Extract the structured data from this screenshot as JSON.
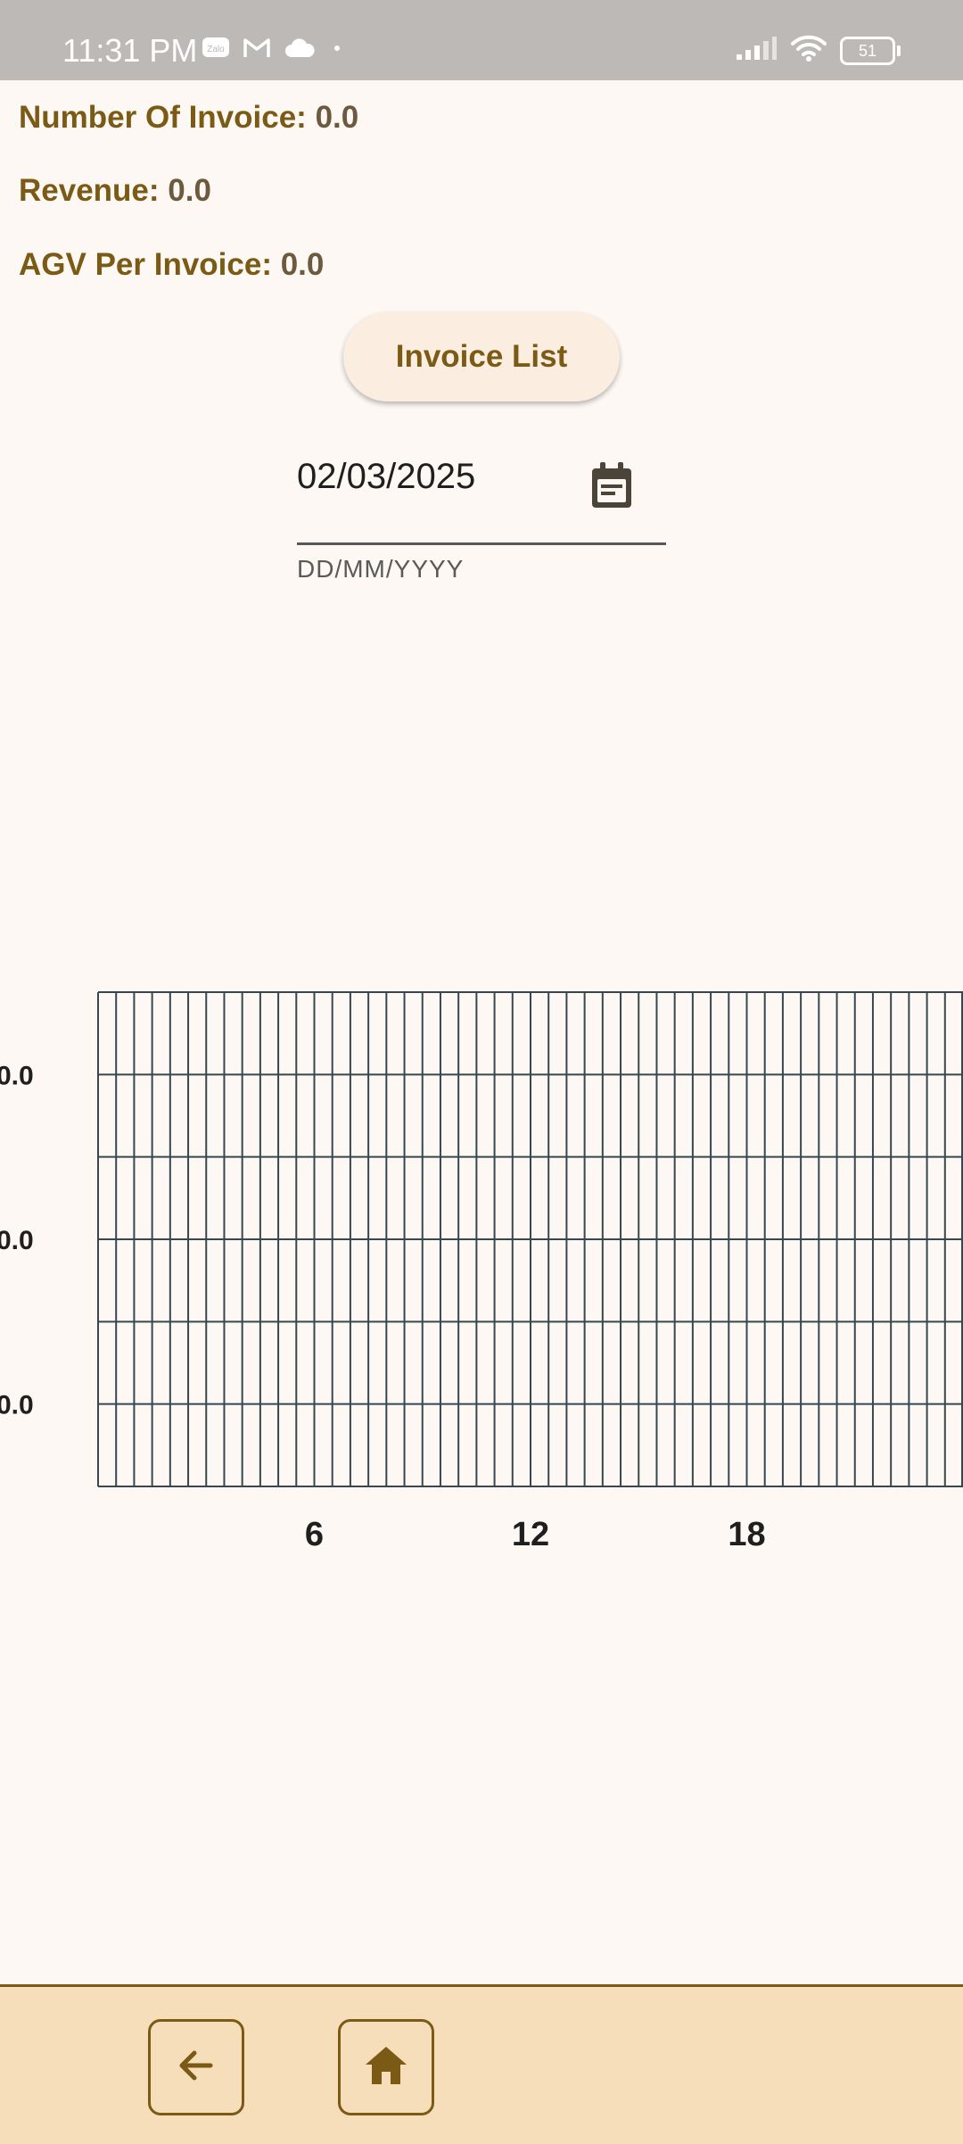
{
  "status_bar": {
    "time": "11:31 PM",
    "left_icons": [
      "zalo-icon",
      "gmail-icon",
      "cloud-icon",
      "dot-icon"
    ],
    "right_icons": [
      "signal-icon",
      "wifi-icon",
      "battery-icon"
    ],
    "battery": "51"
  },
  "stats": {
    "invoices": {
      "label": "Number Of Invoice:",
      "value": "0.0"
    },
    "revenue": {
      "label": "Revenue:",
      "value": "0.0"
    },
    "average": {
      "label": "AGV Per Invoice:",
      "value": "0.0"
    }
  },
  "invoice_list_button": "Invoice List",
  "date_field": {
    "value": "02/03/2025",
    "hint": "DD/MM/YYYY",
    "icon": "calendar-icon"
  },
  "chart_data": {
    "type": "line",
    "x_range": [
      0,
      24
    ],
    "x_ticks": [
      "6",
      "12",
      "18"
    ],
    "y_tick_labels": [
      "0.0",
      "0.0",
      "0.0"
    ],
    "grid": true,
    "series": []
  },
  "bottom_nav": {
    "back_icon": "arrow-left-icon",
    "home_icon": "home-icon"
  },
  "colors": {
    "brand": "#7a5a14",
    "background": "#fdf8f3",
    "bottom_bar": "#f6deba",
    "grid": "#37474f"
  }
}
